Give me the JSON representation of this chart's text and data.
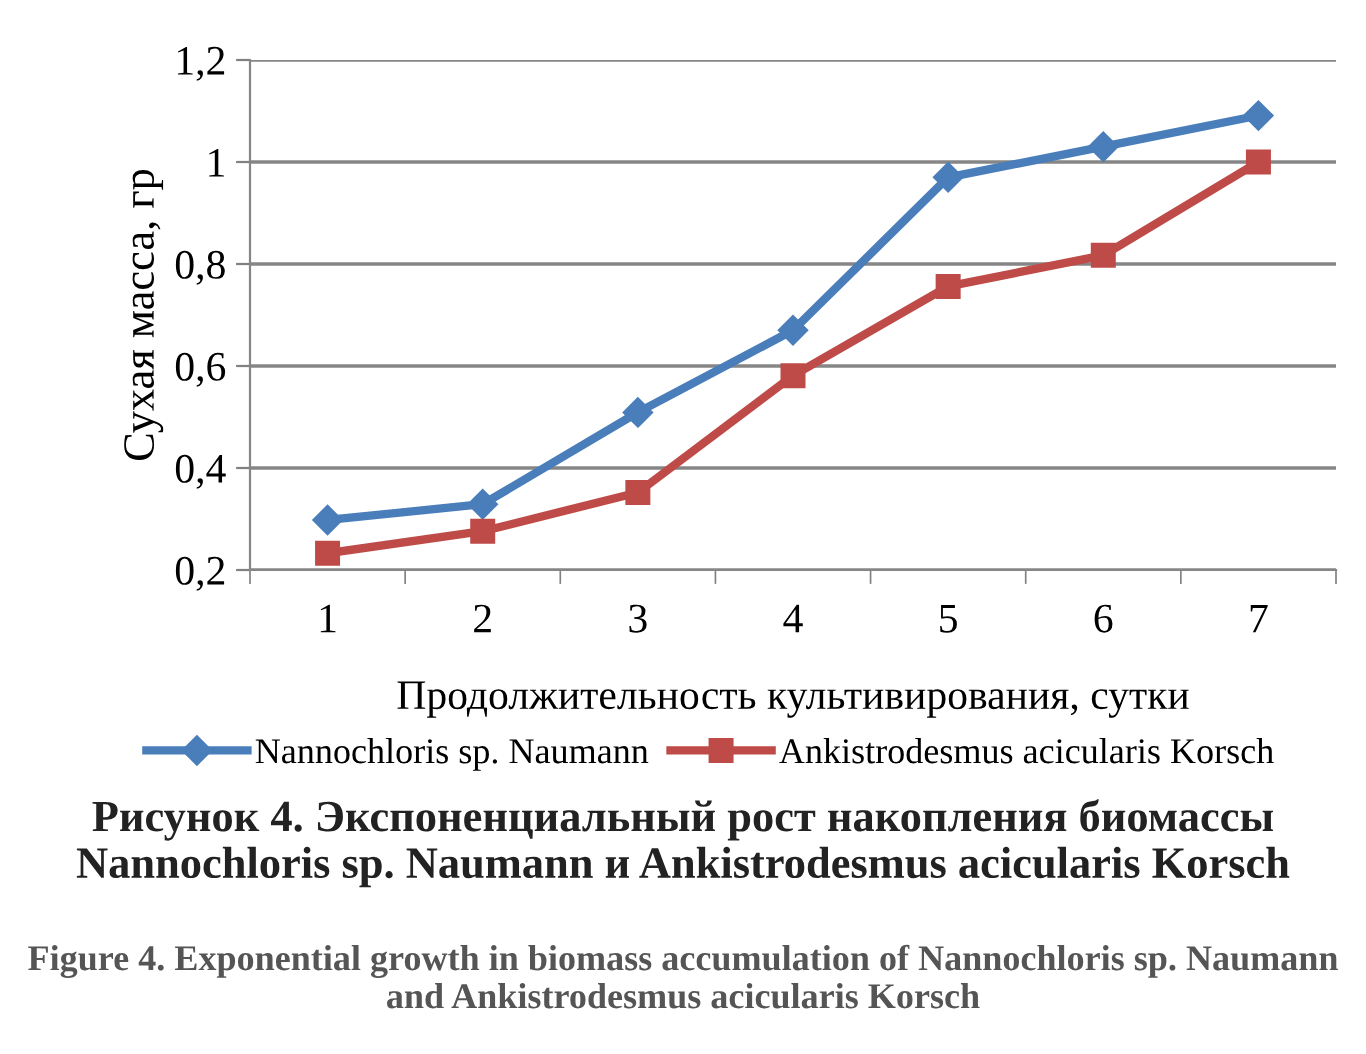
{
  "chart_data": {
    "type": "line",
    "xlabel": "Продолжительность культивирования, сутки",
    "ylabel": "Сухая масса, гр",
    "categories": [
      "1",
      "2",
      "3",
      "4",
      "5",
      "6",
      "7"
    ],
    "series": [
      {
        "name": "Nannochloris sp. Naumann",
        "color": "#4a7ebb",
        "marker": "diamond",
        "values": [
          0.298,
          0.329,
          0.509,
          0.67,
          0.97,
          1.03,
          1.091
        ]
      },
      {
        "name": "Ankistrodesmus acicularis Korsch",
        "color": "#be4b48",
        "marker": "square",
        "values": [
          0.233,
          0.276,
          0.352,
          0.581,
          0.756,
          0.817,
          1.0
        ]
      }
    ],
    "ylim": [
      0.2,
      1.2
    ],
    "yticks": [
      {
        "value": 0.2,
        "label": "0,2"
      },
      {
        "value": 0.4,
        "label": "0,4"
      },
      {
        "value": 0.6,
        "label": "0,6"
      },
      {
        "value": 0.8,
        "label": "0,8"
      },
      1,
      {
        "value": 1.2,
        "label": "1,2"
      }
    ],
    "grid": "y",
    "legend": "bottom",
    "line_style": "solid",
    "annotations": [
      "Рисунок 4. Экспоненциальный рост накопления биомассы Nannochloris sp. Naumann и Ankistrodesmus acicularis Korsch",
      "Figure 4. Exponential growth in biomass accumulation of Nannochloris sp. Naumann and Ankistrodesmus acicularis Korsch"
    ]
  }
}
